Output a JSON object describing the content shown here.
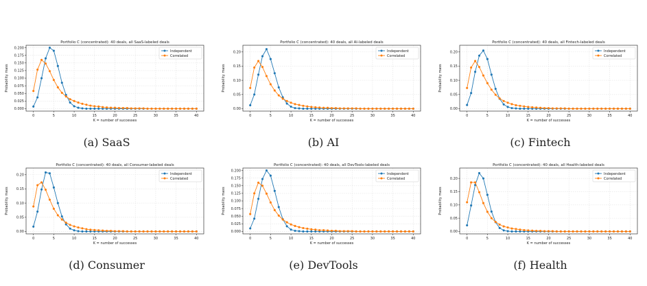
{
  "figure": {
    "colors": {
      "independent": "#1f77b4",
      "correlated": "#ff7f0e",
      "grid": "#e3e3e3",
      "axis": "#333333"
    },
    "common": {
      "xlabel": "K = number of successes",
      "ylabel": "Probability mass",
      "series_names": [
        "Independent",
        "Correlated"
      ],
      "legend_position": "top-right",
      "grid": true,
      "x_ticks": [
        0,
        5,
        10,
        15,
        20,
        25,
        30,
        35,
        40
      ],
      "xlim": [
        0,
        40
      ]
    }
  },
  "chart_data": [
    {
      "type": "line",
      "caption": "(a) SaaS",
      "title": "Portfolio C (concentrated): 40 deals, all SaaS-labeled deals",
      "xlabel": "K = number of successes",
      "ylabel": "Probability mass",
      "grid": true,
      "ylim": [
        0,
        0.2
      ],
      "y_ticks": [
        "0.000",
        "0.025",
        "0.050",
        "0.075",
        "0.100",
        "0.125",
        "0.150",
        "0.175",
        "0.200"
      ],
      "y_tick_values": [
        0,
        0.025,
        0.05,
        0.075,
        0.1,
        0.125,
        0.15,
        0.175,
        0.2
      ],
      "x": [
        0,
        1,
        2,
        3,
        4,
        5,
        6,
        7,
        8,
        9,
        10,
        11,
        12,
        13,
        14,
        15,
        16,
        17,
        18,
        19,
        20,
        21,
        22,
        23,
        24,
        25,
        26,
        27,
        28,
        29,
        30,
        31,
        32,
        33,
        34,
        35,
        36,
        37,
        38,
        39,
        40
      ],
      "series": [
        {
          "name": "Independent",
          "values": [
            0.007,
            0.037,
            0.1,
            0.165,
            0.2,
            0.19,
            0.14,
            0.085,
            0.045,
            0.02,
            0.008,
            0.003,
            0.001,
            0,
            0,
            0,
            0,
            0,
            0,
            0,
            0,
            0,
            0,
            0,
            0,
            0,
            0,
            0,
            0,
            0,
            0,
            0,
            0,
            0,
            0,
            0,
            0,
            0,
            0,
            0,
            0
          ]
        },
        {
          "name": "Correlated",
          "values": [
            0.058,
            0.128,
            0.16,
            0.148,
            0.123,
            0.094,
            0.07,
            0.052,
            0.04,
            0.031,
            0.025,
            0.02,
            0.016,
            0.013,
            0.01,
            0.008,
            0.007,
            0.005,
            0.004,
            0.003,
            0.003,
            0.002,
            0.002,
            0.002,
            0.001,
            0.001,
            0.001,
            0.001,
            0,
            0,
            0,
            0,
            0,
            0,
            0,
            0,
            0,
            0,
            0,
            0,
            0
          ]
        }
      ]
    },
    {
      "type": "line",
      "caption": "(b) AI",
      "title": "Portfolio C (concentrated): 40 deals, all AI-labeled deals",
      "xlabel": "K = number of successes",
      "ylabel": "Probability mass",
      "grid": true,
      "ylim": [
        0,
        0.215
      ],
      "y_ticks": [
        "0.00",
        "0.05",
        "0.10",
        "0.15",
        "0.20"
      ],
      "y_tick_values": [
        0,
        0.05,
        0.1,
        0.15,
        0.2
      ],
      "x": [
        0,
        1,
        2,
        3,
        4,
        5,
        6,
        7,
        8,
        9,
        10,
        11,
        12,
        13,
        14,
        15,
        16,
        17,
        18,
        19,
        20,
        21,
        22,
        23,
        24,
        25,
        26,
        27,
        28,
        29,
        30,
        31,
        32,
        33,
        34,
        35,
        36,
        37,
        38,
        39,
        40
      ],
      "series": [
        {
          "name": "Independent",
          "values": [
            0.012,
            0.05,
            0.12,
            0.185,
            0.21,
            0.175,
            0.125,
            0.075,
            0.04,
            0.018,
            0.007,
            0.002,
            0.001,
            0,
            0,
            0,
            0,
            0,
            0,
            0,
            0,
            0,
            0,
            0,
            0,
            0,
            0,
            0,
            0,
            0,
            0,
            0,
            0,
            0,
            0,
            0,
            0,
            0,
            0,
            0,
            0
          ]
        },
        {
          "name": "Correlated",
          "values": [
            0.073,
            0.145,
            0.168,
            0.147,
            0.115,
            0.086,
            0.064,
            0.047,
            0.035,
            0.027,
            0.021,
            0.016,
            0.013,
            0.01,
            0.008,
            0.006,
            0.005,
            0.004,
            0.003,
            0.003,
            0.002,
            0.002,
            0.001,
            0.001,
            0.001,
            0.001,
            0.001,
            0,
            0,
            0,
            0,
            0,
            0,
            0,
            0,
            0,
            0,
            0,
            0,
            0,
            0
          ]
        }
      ]
    },
    {
      "type": "line",
      "caption": "(c) Fintech",
      "title": "Portfolio C (concentrated): 40 deals, all Fintech-labeled deals",
      "xlabel": "K = number of successes",
      "ylabel": "Probability mass",
      "grid": true,
      "ylim": [
        0,
        0.215
      ],
      "y_ticks": [
        "0.00",
        "0.05",
        "0.10",
        "0.15",
        "0.20"
      ],
      "y_tick_values": [
        0,
        0.05,
        0.1,
        0.15,
        0.2
      ],
      "x": [
        0,
        1,
        2,
        3,
        4,
        5,
        6,
        7,
        8,
        9,
        10,
        11,
        12,
        13,
        14,
        15,
        16,
        17,
        18,
        19,
        20,
        21,
        22,
        23,
        24,
        25,
        26,
        27,
        28,
        29,
        30,
        31,
        32,
        33,
        34,
        35,
        36,
        37,
        38,
        39,
        40
      ],
      "series": [
        {
          "name": "Independent",
          "values": [
            0.013,
            0.055,
            0.13,
            0.187,
            0.205,
            0.175,
            0.12,
            0.07,
            0.035,
            0.015,
            0.006,
            0.002,
            0.001,
            0,
            0,
            0,
            0,
            0,
            0,
            0,
            0,
            0,
            0,
            0,
            0,
            0,
            0,
            0,
            0,
            0,
            0,
            0,
            0,
            0,
            0,
            0,
            0,
            0,
            0,
            0,
            0
          ]
        },
        {
          "name": "Correlated",
          "values": [
            0.073,
            0.145,
            0.168,
            0.147,
            0.117,
            0.09,
            0.067,
            0.049,
            0.036,
            0.027,
            0.021,
            0.016,
            0.012,
            0.01,
            0.008,
            0.006,
            0.005,
            0.004,
            0.003,
            0.002,
            0.002,
            0.001,
            0.001,
            0.001,
            0.001,
            0,
            0,
            0,
            0,
            0,
            0,
            0,
            0,
            0,
            0,
            0,
            0,
            0,
            0,
            0,
            0
          ]
        }
      ]
    },
    {
      "type": "line",
      "caption": "(d) Consumer",
      "title": "Portfolio C (concentrated): 40 deals, all Consumer-labeled deals",
      "xlabel": "K = number of successes",
      "ylabel": "Probability mass",
      "grid": true,
      "ylim": [
        0,
        0.215
      ],
      "y_ticks": [
        "0.00",
        "0.05",
        "0.10",
        "0.15",
        "0.20"
      ],
      "y_tick_values": [
        0,
        0.05,
        0.1,
        0.15,
        0.2
      ],
      "x": [
        0,
        1,
        2,
        3,
        4,
        5,
        6,
        7,
        8,
        9,
        10,
        11,
        12,
        13,
        14,
        15,
        16,
        17,
        18,
        19,
        20,
        21,
        22,
        23,
        24,
        25,
        26,
        27,
        28,
        29,
        30,
        31,
        32,
        33,
        34,
        35,
        36,
        37,
        38,
        39,
        40
      ],
      "series": [
        {
          "name": "Independent",
          "values": [
            0.017,
            0.07,
            0.148,
            0.208,
            0.205,
            0.155,
            0.1,
            0.053,
            0.025,
            0.01,
            0.004,
            0.001,
            0,
            0,
            0,
            0,
            0,
            0,
            0,
            0,
            0,
            0,
            0,
            0,
            0,
            0,
            0,
            0,
            0,
            0,
            0,
            0,
            0,
            0,
            0,
            0,
            0,
            0,
            0,
            0,
            0
          ]
        },
        {
          "name": "Correlated",
          "values": [
            0.088,
            0.163,
            0.173,
            0.147,
            0.112,
            0.08,
            0.057,
            0.042,
            0.031,
            0.023,
            0.018,
            0.014,
            0.011,
            0.008,
            0.006,
            0.005,
            0.004,
            0.003,
            0.002,
            0.002,
            0.001,
            0.001,
            0.001,
            0,
            0,
            0,
            0,
            0,
            0,
            0,
            0,
            0,
            0,
            0,
            0,
            0,
            0,
            0,
            0,
            0,
            0
          ]
        }
      ]
    },
    {
      "type": "line",
      "caption": "(e) DevTools",
      "title": "Portfolio C (concentrated): 40 deals, all DevTools-labeled deals",
      "xlabel": "K = number of successes",
      "ylabel": "Probability mass",
      "grid": true,
      "ylim": [
        0,
        0.2
      ],
      "y_ticks": [
        "0.000",
        "0.025",
        "0.050",
        "0.075",
        "0.100",
        "0.125",
        "0.150",
        "0.175",
        "0.200"
      ],
      "y_tick_values": [
        0,
        0.025,
        0.05,
        0.075,
        0.1,
        0.125,
        0.15,
        0.175,
        0.2
      ],
      "x": [
        0,
        1,
        2,
        3,
        4,
        5,
        6,
        7,
        8,
        9,
        10,
        11,
        12,
        13,
        14,
        15,
        16,
        17,
        18,
        19,
        20,
        21,
        22,
        23,
        24,
        25,
        26,
        27,
        28,
        29,
        30,
        31,
        32,
        33,
        34,
        35,
        36,
        37,
        38,
        39,
        40
      ],
      "series": [
        {
          "name": "Independent",
          "values": [
            0.01,
            0.042,
            0.107,
            0.172,
            0.2,
            0.183,
            0.133,
            0.08,
            0.04,
            0.017,
            0.006,
            0.002,
            0.001,
            0,
            0,
            0,
            0,
            0,
            0,
            0,
            0,
            0,
            0,
            0,
            0,
            0,
            0,
            0,
            0,
            0,
            0,
            0,
            0,
            0,
            0,
            0,
            0,
            0,
            0,
            0,
            0
          ]
        },
        {
          "name": "Correlated",
          "values": [
            0.057,
            0.125,
            0.16,
            0.15,
            0.124,
            0.095,
            0.07,
            0.052,
            0.039,
            0.03,
            0.023,
            0.018,
            0.014,
            0.011,
            0.009,
            0.007,
            0.006,
            0.004,
            0.004,
            0.003,
            0.002,
            0.002,
            0.001,
            0.001,
            0.001,
            0.001,
            0,
            0,
            0,
            0,
            0,
            0,
            0,
            0,
            0,
            0,
            0,
            0,
            0,
            0,
            0
          ]
        }
      ]
    },
    {
      "type": "line",
      "caption": "(f) Health",
      "title": "Portfolio C (concentrated): 40 deals, all Health-labeled deals",
      "xlabel": "K = number of successes",
      "ylabel": "Probability mass",
      "grid": true,
      "ylim": [
        0,
        0.23
      ],
      "y_ticks": [
        "0.00",
        "0.05",
        "0.10",
        "0.15",
        "0.20"
      ],
      "y_tick_values": [
        0,
        0.05,
        0.1,
        0.15,
        0.2
      ],
      "x": [
        0,
        1,
        2,
        3,
        4,
        5,
        6,
        7,
        8,
        9,
        10,
        11,
        12,
        13,
        14,
        15,
        16,
        17,
        18,
        19,
        20,
        21,
        22,
        23,
        24,
        25,
        26,
        27,
        28,
        29,
        30,
        31,
        32,
        33,
        34,
        35,
        36,
        37,
        38,
        39,
        40
      ],
      "series": [
        {
          "name": "Independent",
          "values": [
            0.023,
            0.098,
            0.175,
            0.22,
            0.2,
            0.138,
            0.075,
            0.035,
            0.013,
            0.004,
            0.001,
            0,
            0,
            0,
            0,
            0,
            0,
            0,
            0,
            0,
            0,
            0,
            0,
            0,
            0,
            0,
            0,
            0,
            0,
            0,
            0,
            0,
            0,
            0,
            0,
            0,
            0,
            0,
            0,
            0,
            0
          ]
        },
        {
          "name": "Correlated",
          "values": [
            0.11,
            0.185,
            0.185,
            0.148,
            0.107,
            0.074,
            0.05,
            0.036,
            0.026,
            0.019,
            0.015,
            0.011,
            0.009,
            0.007,
            0.005,
            0.004,
            0.003,
            0.002,
            0.002,
            0.001,
            0.001,
            0.001,
            0,
            0,
            0,
            0,
            0,
            0,
            0,
            0,
            0,
            0,
            0,
            0,
            0,
            0,
            0,
            0,
            0,
            0,
            0
          ]
        }
      ]
    }
  ]
}
